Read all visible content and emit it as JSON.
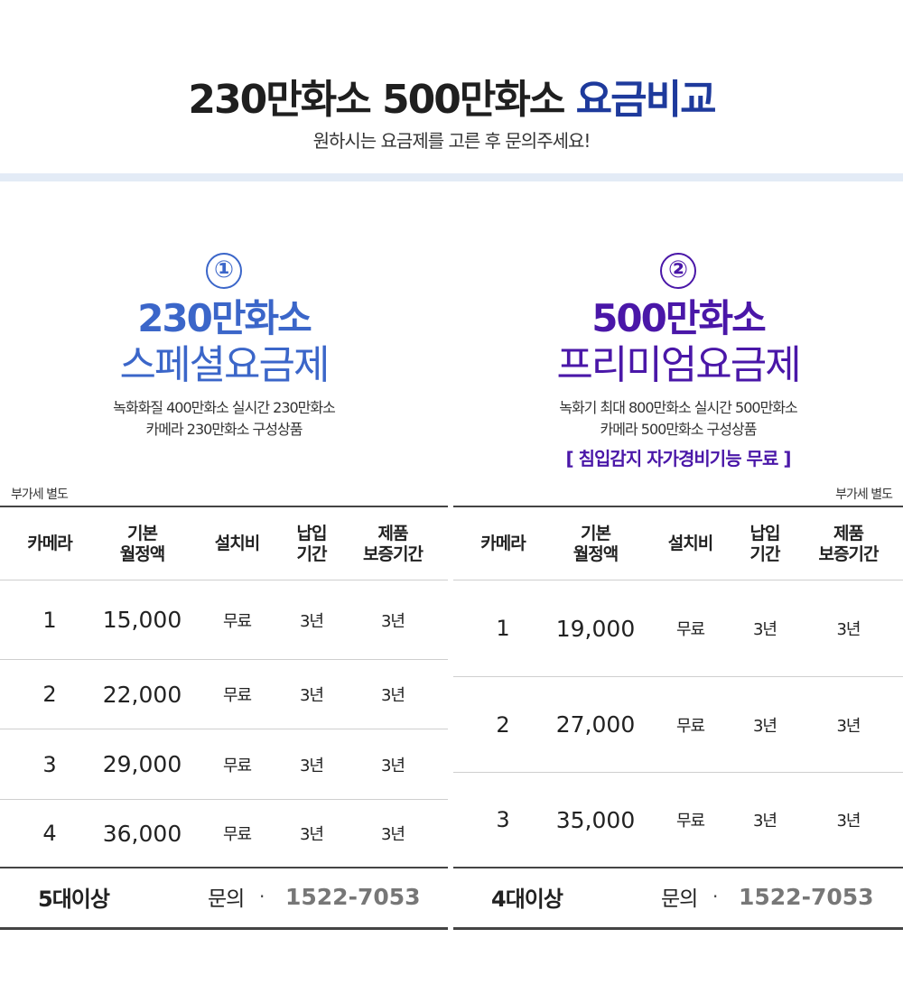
{
  "header": {
    "title_main": "230만화소 500만화소 ",
    "title_accent": "요금비교",
    "subtitle": "원하시는 요금제를 고른 후 문의주세요!"
  },
  "colors": {
    "plan1_accent": "#3b66c9",
    "plan2_accent": "#4a17a8",
    "title_accent": "#1e3a9c",
    "band": "#e3ebf6",
    "phone": "#777777"
  },
  "plans": [
    {
      "number": "①",
      "resolution": "230만화소",
      "name": "스페셜요금제",
      "desc_line1": "녹화화질 400만화소 실시간 230만화소",
      "desc_line2": "카메라 230만화소 구성상품",
      "feature": "",
      "vat_note": "부가세 별도",
      "columns": [
        "카메라",
        "기본\n월정액",
        "설치비",
        "납입\n기간",
        "제품\n보증기간"
      ],
      "rows": [
        {
          "camera": "1",
          "fee": "15,000",
          "install": "무료",
          "term": "3년",
          "warranty": "3년"
        },
        {
          "camera": "2",
          "fee": "22,000",
          "install": "무료",
          "term": "3년",
          "warranty": "3년"
        },
        {
          "camera": "3",
          "fee": "29,000",
          "install": "무료",
          "term": "3년",
          "warranty": "3년"
        },
        {
          "camera": "4",
          "fee": "36,000",
          "install": "무료",
          "term": "3년",
          "warranty": "3년"
        }
      ],
      "footer_label": "5대이상",
      "footer_inquiry": "문의",
      "footer_dot": "·",
      "footer_phone": "1522-7053"
    },
    {
      "number": "②",
      "resolution": "500만화소",
      "name": "프리미엄요금제",
      "desc_line1": "녹화기 최대 800만화소 실시간 500만화소",
      "desc_line2": "카메라 500만화소 구성상품",
      "feature": "[ 침입감지 자가경비기능 무료 ]",
      "vat_note": "부가세 별도",
      "columns": [
        "카메라",
        "기본\n월정액",
        "설치비",
        "납입\n기간",
        "제품\n보증기간"
      ],
      "rows": [
        {
          "camera": "1",
          "fee": "19,000",
          "install": "무료",
          "term": "3년",
          "warranty": "3년"
        },
        {
          "camera": "2",
          "fee": "27,000",
          "install": "무료",
          "term": "3년",
          "warranty": "3년"
        },
        {
          "camera": "3",
          "fee": "35,000",
          "install": "무료",
          "term": "3년",
          "warranty": "3년"
        }
      ],
      "footer_label": "4대이상",
      "footer_inquiry": "문의",
      "footer_dot": "·",
      "footer_phone": "1522-7053"
    }
  ]
}
